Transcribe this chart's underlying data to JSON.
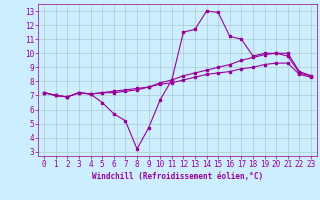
{
  "xlabel": "Windchill (Refroidissement éolien,°C)",
  "bg_color": "#cceeff",
  "grid_color": "#aacccc",
  "line_color": "#990099",
  "xlim": [
    -0.5,
    23.5
  ],
  "ylim": [
    2.7,
    13.5
  ],
  "xticks": [
    0,
    1,
    2,
    3,
    4,
    5,
    6,
    7,
    8,
    9,
    10,
    11,
    12,
    13,
    14,
    15,
    16,
    17,
    18,
    19,
    20,
    21,
    22,
    23
  ],
  "yticks": [
    3,
    4,
    5,
    6,
    7,
    8,
    9,
    10,
    11,
    12,
    13
  ],
  "series1_x": [
    0,
    1,
    2,
    3,
    4,
    5,
    6,
    7,
    8,
    9,
    10,
    11,
    12,
    13,
    14,
    15,
    16,
    17,
    18,
    19,
    20,
    21,
    22,
    23
  ],
  "series1_y": [
    7.2,
    7.0,
    6.9,
    7.2,
    7.1,
    6.5,
    5.7,
    5.2,
    3.2,
    4.7,
    6.7,
    8.1,
    11.5,
    11.7,
    13.0,
    12.9,
    11.2,
    11.0,
    9.8,
    10.0,
    10.0,
    9.8,
    8.6,
    8.4
  ],
  "series2_x": [
    0,
    1,
    2,
    3,
    4,
    5,
    6,
    7,
    8,
    9,
    10,
    11,
    12,
    13,
    14,
    15,
    16,
    17,
    18,
    19,
    20,
    21,
    22,
    23
  ],
  "series2_y": [
    7.2,
    7.0,
    6.9,
    7.2,
    7.1,
    7.2,
    7.2,
    7.3,
    7.4,
    7.6,
    7.9,
    8.1,
    8.4,
    8.6,
    8.8,
    9.0,
    9.2,
    9.5,
    9.7,
    9.9,
    10.0,
    10.0,
    8.7,
    8.4
  ],
  "series3_x": [
    0,
    1,
    2,
    3,
    4,
    5,
    6,
    7,
    8,
    9,
    10,
    11,
    12,
    13,
    14,
    15,
    16,
    17,
    18,
    19,
    20,
    21,
    22,
    23
  ],
  "series3_y": [
    7.2,
    7.0,
    6.9,
    7.2,
    7.1,
    7.2,
    7.3,
    7.4,
    7.5,
    7.6,
    7.8,
    7.9,
    8.1,
    8.3,
    8.5,
    8.6,
    8.7,
    8.9,
    9.0,
    9.2,
    9.3,
    9.3,
    8.5,
    8.3
  ],
  "tick_labelsize": 5.5,
  "xlabel_fontsize": 5.5,
  "marker_size": 1.8,
  "line_width": 0.8
}
